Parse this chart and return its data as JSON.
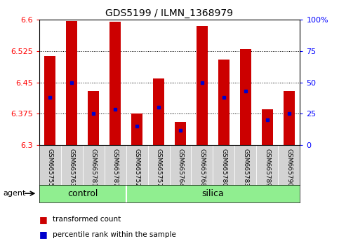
{
  "title": "GDS5199 / ILMN_1368979",
  "samples": [
    "GSM665755",
    "GSM665763",
    "GSM665781",
    "GSM665787",
    "GSM665752",
    "GSM665757",
    "GSM665764",
    "GSM665768",
    "GSM665780",
    "GSM665783",
    "GSM665789",
    "GSM665790"
  ],
  "groups": [
    "control",
    "control",
    "control",
    "control",
    "silica",
    "silica",
    "silica",
    "silica",
    "silica",
    "silica",
    "silica",
    "silica"
  ],
  "bar_tops": [
    6.513,
    6.597,
    6.43,
    6.595,
    6.375,
    6.46,
    6.355,
    6.585,
    6.505,
    6.53,
    6.385,
    6.43
  ],
  "bar_bottoms": [
    6.3,
    6.3,
    6.3,
    6.3,
    6.3,
    6.3,
    6.3,
    6.3,
    6.3,
    6.3,
    6.3,
    6.3
  ],
  "blue_dots": [
    6.415,
    6.45,
    6.375,
    6.385,
    6.345,
    6.39,
    6.335,
    6.45,
    6.415,
    6.43,
    6.36,
    6.375
  ],
  "ylim_left": [
    6.3,
    6.6
  ],
  "ylim_right": [
    0,
    100
  ],
  "yticks_left": [
    6.3,
    6.375,
    6.45,
    6.525,
    6.6
  ],
  "yticks_right": [
    0,
    25,
    50,
    75,
    100
  ],
  "bar_color": "#cc0000",
  "dot_color": "#0000cc",
  "group_color": "#90ee90",
  "sample_bg_color": "#d3d3d3",
  "plot_bg": "#ffffff",
  "bar_width": 0.5,
  "agent_label": "agent",
  "legend_items": [
    "transformed count",
    "percentile rank within the sample"
  ],
  "control_count": 4,
  "silica_count": 8
}
